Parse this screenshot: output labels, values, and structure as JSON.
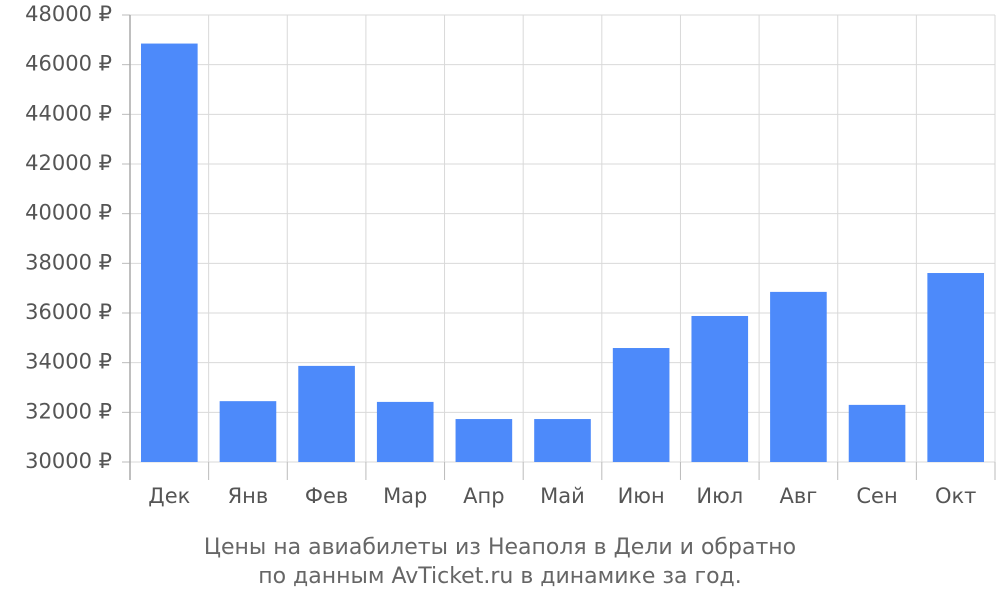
{
  "chart_data": {
    "type": "bar",
    "title": "Цены на авиабилеты из Неаполя в Дели и обратно",
    "subtitle": "по данным AvTicket.ru в динамике за год.",
    "categories": [
      "Дек",
      "Янв",
      "Фев",
      "Мар",
      "Апр",
      "Май",
      "Июн",
      "Июл",
      "Авг",
      "Сен",
      "Окт"
    ],
    "values": [
      46850,
      32450,
      33870,
      32420,
      31730,
      31730,
      34590,
      35880,
      36850,
      32300,
      37610
    ],
    "color": "#4d8afa",
    "ylim": [
      30000,
      48000
    ],
    "yticks": [
      {
        "value": 30000,
        "label": "30000 ₽"
      },
      {
        "value": 32000,
        "label": "32000 ₽"
      },
      {
        "value": 34000,
        "label": "34000 ₽"
      },
      {
        "value": 36000,
        "label": "36000 ₽"
      },
      {
        "value": 38000,
        "label": "38000 ₽"
      },
      {
        "value": 40000,
        "label": "40000 ₽"
      },
      {
        "value": 42000,
        "label": "42000 ₽"
      },
      {
        "value": 44000,
        "label": "44000 ₽"
      },
      {
        "value": 46000,
        "label": "46000 ₽"
      },
      {
        "value": 48000,
        "label": "48000 ₽"
      }
    ],
    "grid": true
  }
}
